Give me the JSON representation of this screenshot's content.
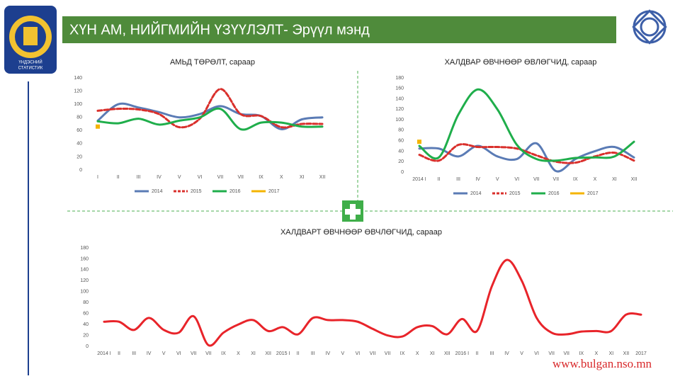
{
  "header": {
    "title": "ХҮН АМ, НИЙГМИЙН ҮЗҮҮЛЭЛТ- Эрүүл мэнд"
  },
  "footer": {
    "url": "www.bulgan.nso.mn"
  },
  "chart_data": [
    {
      "type": "line",
      "title": "АМЬД ТӨРӨЛТ, сараар",
      "categories": [
        "I",
        "II",
        "III",
        "IV",
        "V",
        "VI",
        "VII",
        "VII",
        "IX",
        "X",
        "XI",
        "XII"
      ],
      "ylim": [
        0,
        140
      ],
      "yticks": [
        0,
        20,
        40,
        60,
        80,
        100,
        120,
        140
      ],
      "grid": false,
      "legend": "bottom",
      "series": [
        {
          "name": "2014",
          "color": "#5a7bb5",
          "line_style": "solid",
          "values": [
            75,
            100,
            95,
            88,
            80,
            85,
            97,
            85,
            82,
            62,
            77,
            80
          ]
        },
        {
          "name": "2015",
          "color": "#d9302c",
          "line_style": "dashed",
          "values": [
            90,
            93,
            92,
            85,
            65,
            78,
            123,
            85,
            82,
            65,
            70,
            70
          ]
        },
        {
          "name": "2016",
          "color": "#1fae4b",
          "line_style": "solid",
          "values": [
            74,
            71,
            78,
            69,
            75,
            80,
            93,
            62,
            72,
            72,
            66,
            66
          ]
        },
        {
          "name": "2017",
          "color": "#f4b400",
          "line_style": "solid",
          "values": [
            66,
            null,
            null,
            null,
            null,
            null,
            null,
            null,
            null,
            null,
            null,
            null
          ]
        }
      ]
    },
    {
      "type": "line",
      "title": "ХАЛДВАР ӨВЧНӨӨР ӨВЛӨГЧИД, сараар",
      "categories": [
        "2014 I",
        "II",
        "III",
        "IV",
        "V",
        "VI",
        "VII",
        "VII",
        "IX",
        "X",
        "XI",
        "XII"
      ],
      "ylim": [
        0,
        180
      ],
      "yticks": [
        0,
        20,
        40,
        60,
        80,
        100,
        120,
        140,
        160,
        180
      ],
      "grid": false,
      "legend": "bottom",
      "series": [
        {
          "name": "2014",
          "color": "#5a7bb5",
          "line_style": "solid",
          "values": [
            45,
            45,
            30,
            50,
            30,
            25,
            55,
            2,
            25,
            40,
            48,
            28
          ]
        },
        {
          "name": "2015",
          "color": "#d9302c",
          "line_style": "dashed",
          "values": [
            33,
            22,
            52,
            48,
            48,
            45,
            32,
            20,
            18,
            30,
            37,
            22
          ]
        },
        {
          "name": "2016",
          "color": "#1fae4b",
          "line_style": "solid",
          "values": [
            50,
            28,
            110,
            158,
            120,
            52,
            25,
            22,
            27,
            28,
            30,
            58
          ]
        },
        {
          "name": "2017",
          "color": "#f4b400",
          "line_style": "solid",
          "values": [
            58,
            null,
            null,
            null,
            null,
            null,
            null,
            null,
            null,
            null,
            null,
            null
          ]
        }
      ]
    },
    {
      "type": "line",
      "title": "ХАЛДВАРТ ӨВЧНӨӨР ӨВЧЛӨГЧИД, сараар",
      "categories": [
        "2014 I",
        "II",
        "III",
        "IV",
        "V",
        "VI",
        "VII",
        "VII",
        "IX",
        "X",
        "XI",
        "XII",
        "2015 I",
        "II",
        "III",
        "IV",
        "V",
        "VI",
        "VII",
        "VII",
        "IX",
        "X",
        "XI",
        "XII",
        "2016 I",
        "II",
        "III",
        "IV",
        "V",
        "VI",
        "VII",
        "VII",
        "IX",
        "X",
        "XI",
        "XII",
        "2017"
      ],
      "ylim": [
        0,
        180
      ],
      "yticks": [
        0,
        20,
        40,
        60,
        80,
        100,
        120,
        140,
        160,
        180
      ],
      "grid": false,
      "color": "#e8242a",
      "values": [
        45,
        45,
        30,
        52,
        30,
        25,
        55,
        2,
        25,
        40,
        48,
        28,
        35,
        22,
        52,
        48,
        48,
        45,
        32,
        20,
        18,
        35,
        37,
        22,
        50,
        28,
        110,
        158,
        120,
        52,
        25,
        22,
        27,
        28,
        28,
        58,
        58
      ]
    }
  ]
}
